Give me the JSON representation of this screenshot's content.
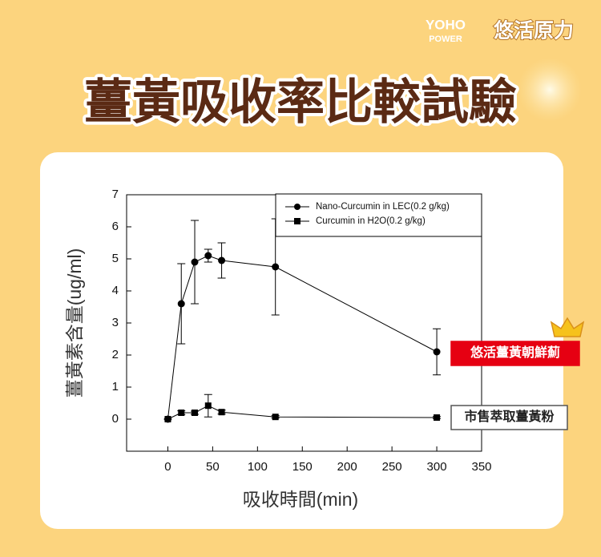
{
  "brand": {
    "logo": "YOHO",
    "logo_sub": "POWER",
    "name": "悠活原力"
  },
  "chart_data": {
    "type": "line",
    "title": "薑黃吸收率比較試驗",
    "x_label": "吸收時間(min)",
    "y_label": "薑黃素含量(ug/ml)",
    "x": [
      0,
      15,
      30,
      45,
      60,
      120,
      300
    ],
    "series": [
      {
        "name": "Nano-Curcumin in LEC(0.2 g/kg)",
        "color": "#000000",
        "marker": "circle",
        "values": [
          0,
          3.6,
          4.9,
          5.1,
          4.95,
          4.75,
          2.1
        ],
        "errors": [
          0,
          1.25,
          1.3,
          0.2,
          0.55,
          1.5,
          0.72
        ]
      },
      {
        "name": "Curcumin in H2O(0.2 g/kg)",
        "color": "#000000",
        "marker": "square",
        "values": [
          0,
          0.2,
          0.2,
          0.42,
          0.22,
          0.07,
          0.05
        ],
        "errors": [
          0,
          0.06,
          0.05,
          0.35,
          0.06,
          0.04,
          0.03
        ]
      }
    ],
    "xlim": [
      -46,
      350
    ],
    "xticks": [
      0,
      50,
      100,
      150,
      200,
      250,
      300,
      350
    ],
    "ylim": [
      -1,
      7
    ],
    "yticks": [
      0,
      1,
      2,
      3,
      4,
      5,
      6,
      7
    ],
    "legend": "top-right",
    "annotations": [
      {
        "text": "悠活薑黃朝鮮薊",
        "series": 0
      },
      {
        "text": "市售萃取薑黃粉",
        "series": 1
      }
    ]
  }
}
